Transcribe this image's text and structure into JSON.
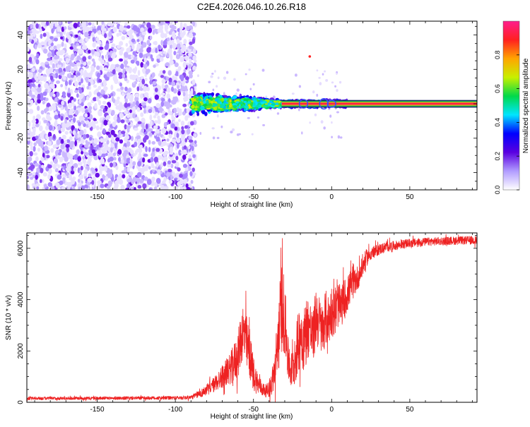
{
  "title": "C2E4.2026.046.10.26.R18",
  "chart_data": [
    {
      "type": "heatmap",
      "title": "C2E4.2026.046.10.26.R18",
      "xlabel": "Height of straight line (km)",
      "ylabel": "Frequency (Hz)",
      "xlim": [
        -195,
        93
      ],
      "ylim": [
        -50,
        48
      ],
      "xticks": [
        -150,
        -100,
        -50,
        0,
        50
      ],
      "xtick_labels": [
        "-150",
        "-100",
        "-50",
        "0",
        "50"
      ],
      "yticks": [
        -40,
        -20,
        0,
        20,
        40
      ],
      "ytick_labels": [
        "-40",
        "-20",
        "0",
        "20",
        "40"
      ],
      "noise_region_x": [
        -195,
        -89
      ],
      "carrier_frequency_hz": 0,
      "description_regions": [
        {
          "x_start": -195,
          "x_end": -89,
          "pattern": "broadband noise"
        },
        {
          "x_start": -89,
          "x_end": -30,
          "pattern": "spread carrier ±6 Hz"
        },
        {
          "x_start": -30,
          "x_end": 93,
          "pattern": "narrow carrier"
        }
      ],
      "colorbar": {
        "label": "Normalized spectral amplitude",
        "ticks": [
          0.0,
          0.2,
          0.4,
          0.6,
          0.8
        ],
        "tick_labels": [
          "0.0",
          "0.2",
          "0.4",
          "0.6",
          "0.8"
        ],
        "range": [
          0,
          1
        ],
        "colors": [
          "#ffffff",
          "#b19cff",
          "#5a00e0",
          "#0000ff",
          "#00e5ff",
          "#00d94a",
          "#c8f000",
          "#ffa500",
          "#ff2020",
          "#ff1e8c"
        ]
      }
    },
    {
      "type": "line",
      "xlabel": "Height of straight line (km)",
      "ylabel": "SNR (10 * v/v)",
      "xlim": [
        -195,
        93
      ],
      "ylim": [
        0,
        6600
      ],
      "xticks": [
        -150,
        -100,
        -50,
        0,
        50
      ],
      "xtick_labels": [
        "-150",
        "-100",
        "-50",
        "0",
        "50"
      ],
      "yticks": [
        0,
        2000,
        4000,
        6000
      ],
      "ytick_labels": [
        "0",
        "2000",
        "4000",
        "6000"
      ],
      "color": "#ee2222",
      "series": [
        {
          "name": "SNR",
          "x": [
            -195,
            -150,
            -100,
            -90,
            -82,
            -75,
            -70,
            -65,
            -60,
            -57,
            -54,
            -52,
            -50,
            -47,
            -44,
            -42,
            -40,
            -38,
            -36,
            -34,
            -32,
            -30,
            -28,
            -26,
            -24,
            -22,
            -20,
            -18,
            -16,
            -14,
            -12,
            -10,
            -8,
            -6,
            -4,
            -2,
            0,
            2,
            4,
            6,
            8,
            10,
            12,
            14,
            16,
            18,
            20,
            22,
            25,
            30,
            35,
            40,
            50,
            60,
            70,
            80,
            93
          ],
          "y": [
            150,
            160,
            170,
            190,
            400,
            700,
            1000,
            1300,
            1800,
            2800,
            2200,
            1700,
            1100,
            700,
            500,
            450,
            500,
            800,
            1400,
            2600,
            3800,
            3300,
            1700,
            1200,
            1500,
            2100,
            2800,
            2400,
            2900,
            3000,
            2400,
            3400,
            3100,
            2800,
            3300,
            3200,
            3600,
            3400,
            3800,
            3700,
            4000,
            4200,
            4500,
            4600,
            4800,
            5000,
            5300,
            5600,
            5800,
            5950,
            6050,
            6100,
            6200,
            6250,
            6280,
            6300,
            6320
          ],
          "noise_amplitude": [
            60,
            60,
            70,
            80,
            180,
            300,
            450,
            600,
            900,
            1200,
            1100,
            900,
            700,
            400,
            280,
            250,
            300,
            500,
            900,
            1500,
            1800,
            1500,
            900,
            700,
            900,
            1200,
            1300,
            1200,
            1300,
            1200,
            1000,
            1200,
            1100,
            1000,
            1100,
            1000,
            1000,
            900,
            900,
            800,
            800,
            700,
            650,
            550,
            500,
            450,
            400,
            350,
            250,
            220,
            200,
            180,
            170,
            160,
            160,
            160,
            160
          ]
        }
      ]
    }
  ]
}
